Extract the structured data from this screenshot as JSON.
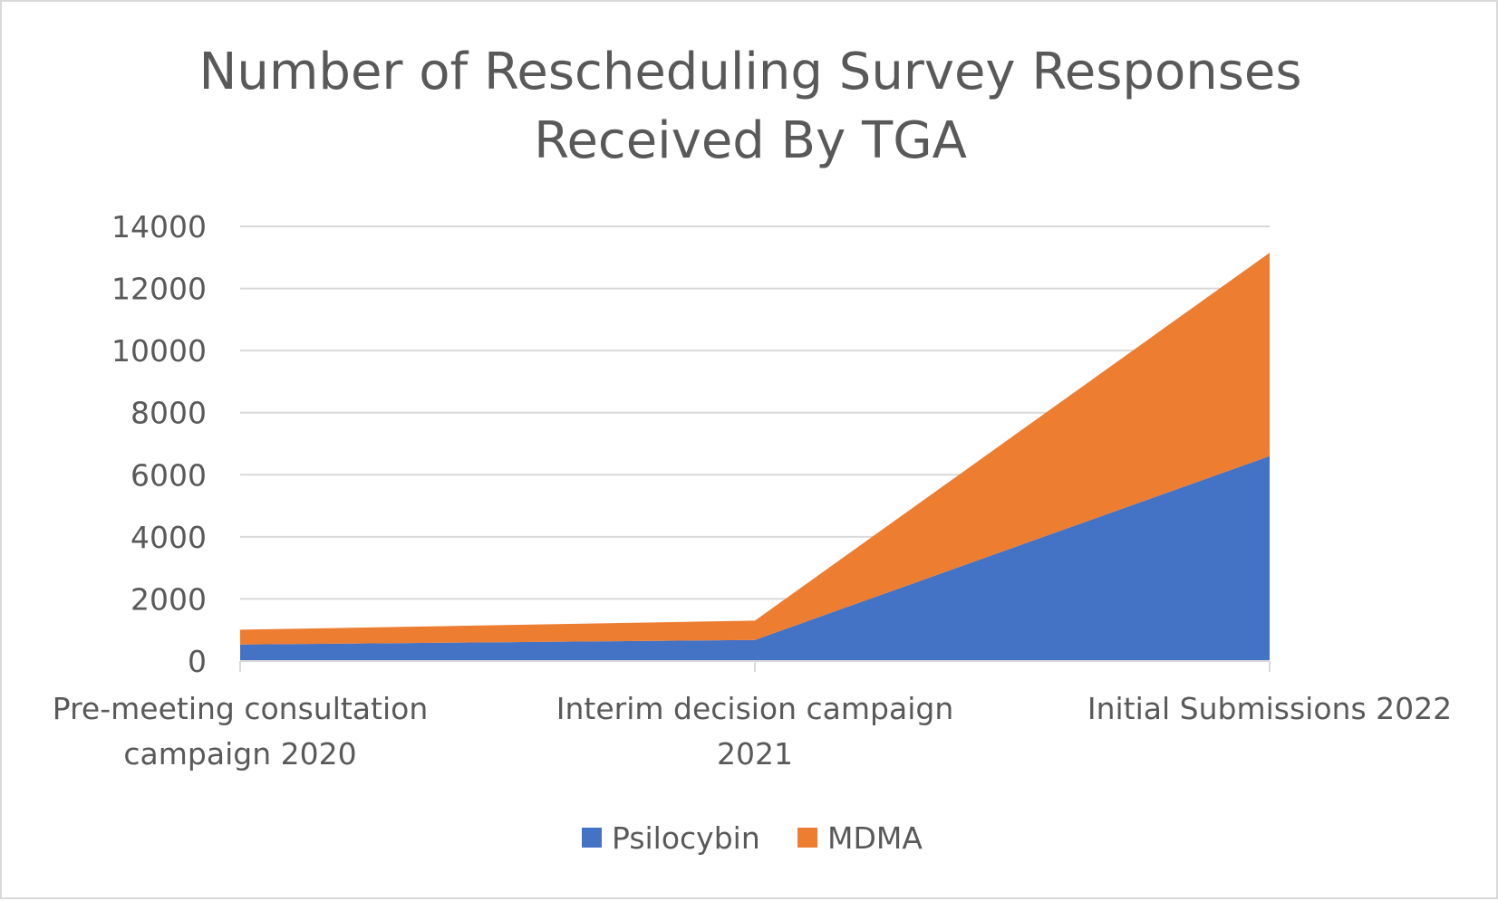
{
  "chart_data": {
    "type": "area",
    "stacked": true,
    "title": "Number of Rescheduling Survey Responses Received By TGA",
    "title_lines": [
      "Number of Rescheduling Survey Responses",
      "Received By TGA"
    ],
    "categories": [
      "Pre-meeting consultation campaign 2020",
      "Interim decision campaign 2021",
      "Initial Submissions 2022"
    ],
    "category_lines": [
      [
        "Pre-meeting consultation",
        "campaign 2020"
      ],
      [
        "Interim decision campaign",
        "2021"
      ],
      [
        "Initial Submissions 2022"
      ]
    ],
    "series": [
      {
        "name": "Psilocybin",
        "color": "#4472c4",
        "values": [
          530,
          680,
          6600
        ]
      },
      {
        "name": "MDMA",
        "color": "#ed7d31",
        "values": [
          480,
          620,
          6550
        ]
      }
    ],
    "ylim": [
      0,
      14000
    ],
    "yticks": [
      0,
      2000,
      4000,
      6000,
      8000,
      10000,
      12000,
      14000
    ],
    "ytick_labels": [
      "0",
      "2000",
      "4000",
      "6000",
      "8000",
      "10000",
      "12000",
      "14000"
    ],
    "xlabel": "",
    "ylabel": "",
    "grid": true,
    "legend_position": "bottom",
    "gridline_color": "#d9d9d9",
    "axis_color": "#d9d9d9"
  }
}
